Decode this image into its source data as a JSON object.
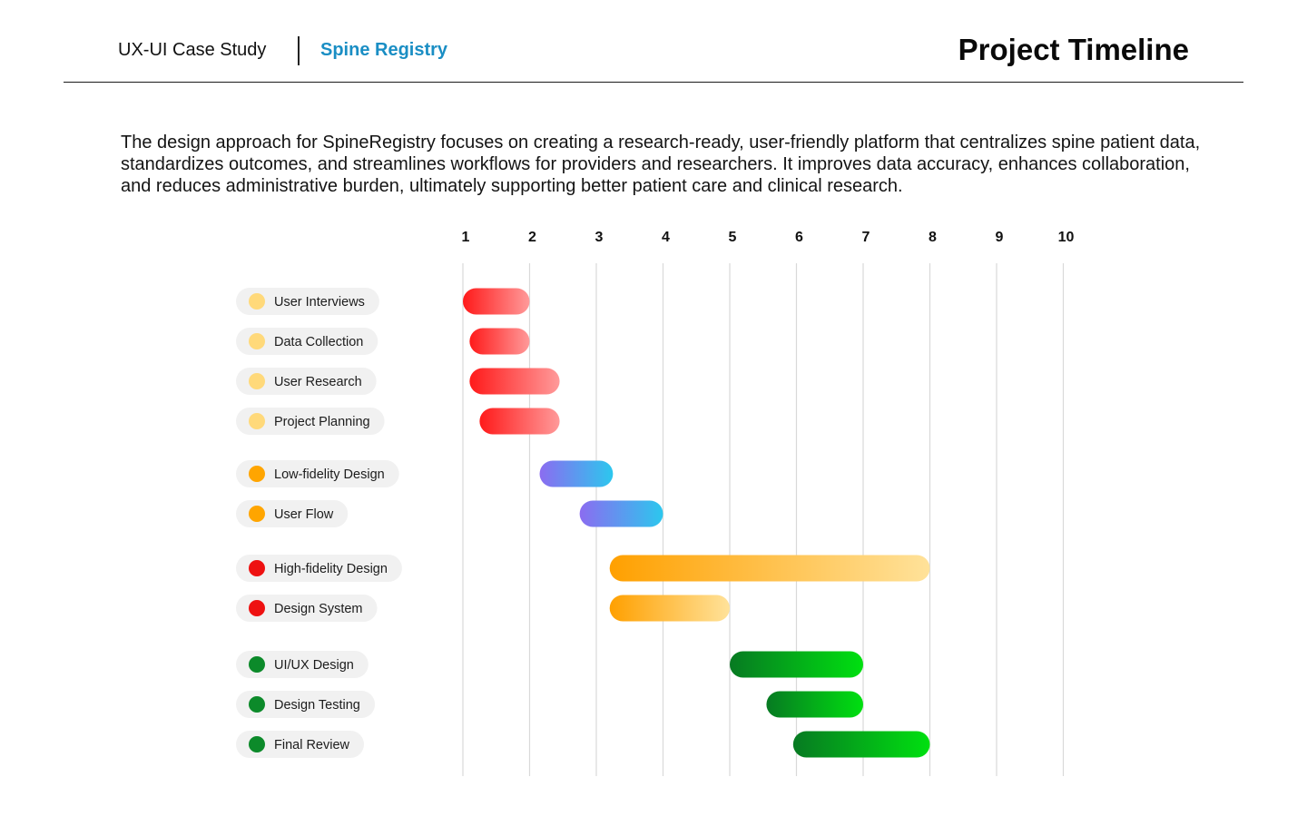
{
  "header": {
    "brand": "UX-UI Case Study",
    "product": "Spine Registry",
    "title": "Project Timeline"
  },
  "intro": "The design approach for SpineRegistry focuses on creating a research-ready, user-friendly platform that centralizes spine patient data, standardizes outcomes, and streamlines workflows for providers and researchers. It improves data accuracy, enhances collaboration, and reduces administrative burden, ultimately supporting better patient care and clinical research.",
  "colors": {
    "gridline": "#d9d9d9",
    "pill_bg": "#f1f1f1",
    "phase_dots": [
      "#ffd97a",
      "#ffa500",
      "#ee1111",
      "#0c8a2a"
    ],
    "phase_gradients": [
      [
        "#ff1a1a",
        "#ff9a9a"
      ],
      [
        "#8b6cf0",
        "#2cc7ee"
      ],
      [
        "#ffa000",
        "#ffe29a"
      ],
      [
        "#077a22",
        "#00e010"
      ]
    ]
  },
  "chart_data": {
    "type": "gantt",
    "title": "Project Timeline",
    "x_ticks": [
      1,
      2,
      3,
      4,
      5,
      6,
      7,
      8,
      9,
      10
    ],
    "xlim": [
      1,
      10
    ],
    "grid": true,
    "tasks": [
      {
        "name": "User Interviews",
        "phase": 0,
        "start": 1.0,
        "end": 2.0
      },
      {
        "name": "Data Collection",
        "phase": 0,
        "start": 1.1,
        "end": 2.0
      },
      {
        "name": "User Research",
        "phase": 0,
        "start": 1.1,
        "end": 2.45
      },
      {
        "name": "Project Planning",
        "phase": 0,
        "start": 1.25,
        "end": 2.45
      },
      {
        "name": "Low-fidelity Design",
        "phase": 1,
        "start": 2.15,
        "end": 3.25
      },
      {
        "name": "User Flow",
        "phase": 1,
        "start": 2.75,
        "end": 4.0
      },
      {
        "name": "High-fidelity Design",
        "phase": 2,
        "start": 3.2,
        "end": 8.0
      },
      {
        "name": "Design System",
        "phase": 2,
        "start": 3.2,
        "end": 5.0
      },
      {
        "name": "UI/UX Design",
        "phase": 3,
        "start": 5.0,
        "end": 7.0
      },
      {
        "name": "Design Testing",
        "phase": 3,
        "start": 5.55,
        "end": 7.0
      },
      {
        "name": "Final Review",
        "phase": 3,
        "start": 5.95,
        "end": 8.0
      }
    ]
  }
}
